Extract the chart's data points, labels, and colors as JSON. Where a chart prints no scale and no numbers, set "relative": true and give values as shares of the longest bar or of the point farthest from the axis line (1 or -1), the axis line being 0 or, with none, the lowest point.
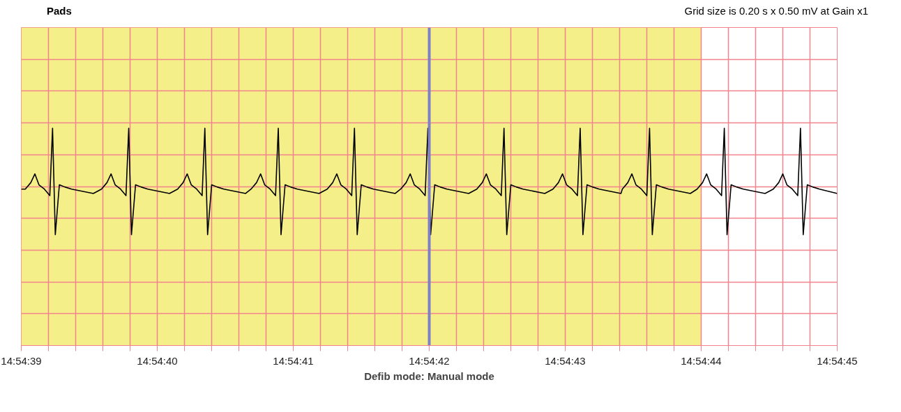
{
  "chart_data": {
    "type": "line",
    "title": "Pads",
    "subtitle": "Grid size is 0.20 s x 0.50 mV at Gain x1",
    "xlabel": "Defib mode: Manual mode",
    "relative": true,
    "grid": true,
    "xlim": [
      14.9108333,
      14.9125
    ],
    "xticks": [
      {
        "value": 14.9108333,
        "label": "14:54:39"
      },
      {
        "value": 14.9108889,
        "label": null
      },
      {
        "value": 14.9109444,
        "label": null
      },
      {
        "value": 14.911,
        "label": null
      },
      {
        "value": 14.9110556,
        "label": null
      },
      {
        "value": 14.9111111,
        "label": "14:54:40"
      },
      {
        "value": 14.9111667,
        "label": null
      },
      {
        "value": 14.9112222,
        "label": null
      },
      {
        "value": 14.9112778,
        "label": null
      },
      {
        "value": 14.9113333,
        "label": null
      },
      {
        "value": 14.9113889,
        "label": "14:54:41"
      },
      {
        "value": 14.9114444,
        "label": null
      },
      {
        "value": 14.9115,
        "label": null
      },
      {
        "value": 14.9115556,
        "label": null
      },
      {
        "value": 14.9116111,
        "label": null
      },
      {
        "value": 14.9116667,
        "label": "14:54:42"
      },
      {
        "value": 14.9117222,
        "label": null
      },
      {
        "value": 14.9117778,
        "label": null
      },
      {
        "value": 14.9118333,
        "label": null
      },
      {
        "value": 14.9118889,
        "label": null
      },
      {
        "value": 14.9119444,
        "label": "14:54:43"
      },
      {
        "value": 14.912,
        "label": null
      },
      {
        "value": 14.9120556,
        "label": null
      },
      {
        "value": 14.9121111,
        "label": null
      },
      {
        "value": 14.9121667,
        "label": null
      },
      {
        "value": 14.9122222,
        "label": "14:54:44"
      },
      {
        "value": 14.9122778,
        "label": null
      },
      {
        "value": 14.9123333,
        "label": null
      },
      {
        "value": 14.9123889,
        "label": null
      },
      {
        "value": 14.9124444,
        "label": null
      },
      {
        "value": 14.9125,
        "label": "14:54:45"
      }
    ],
    "bands": [
      {
        "axis": "x",
        "from": 14.9108333,
        "to": 14.9122222,
        "label": null,
        "color": "#f5ef8a"
      }
    ],
    "ref_lines": [
      {
        "axis": "x",
        "value": 14.9116667,
        "label": null,
        "color": "#7f7fc8"
      }
    ],
    "series": [
      {
        "color": "#000000",
        "x": [
          14.9108333,
          14.9108416,
          14.9108528,
          14.9108611,
          14.9108694,
          14.9108805,
          14.9108916,
          14.9108972,
          14.9109028,
          14.9109111,
          14.9109222,
          14.9109361,
          14.9109805,
          14.9109972,
          14.9110084,
          14.9110167,
          14.911025,
          14.9110361,
          14.9110472,
          14.9110528,
          14.9110584,
          14.9110667,
          14.9110778,
          14.9110917,
          14.9111361,
          14.9111527,
          14.9111639,
          14.9111722,
          14.9111805,
          14.9111916,
          14.9112027,
          14.9112083,
          14.9112139,
          14.9112222,
          14.9112333,
          14.9112472,
          14.9112916,
          14.9113027,
          14.9113139,
          14.9113222,
          14.9113305,
          14.9113416,
          14.9113527,
          14.9113583,
          14.9113639,
          14.9113722,
          14.9113833,
          14.9113972,
          14.9114416,
          14.9114583,
          14.9114695,
          14.9114778,
          14.9114861,
          14.9114972,
          14.9115083,
          14.9115139,
          14.9115195,
          14.9115278,
          14.9115389,
          14.9115528,
          14.9115972,
          14.9116083,
          14.9116195,
          14.9116278,
          14.9116361,
          14.9116472,
          14.9116583,
          14.9116639,
          14.9116695,
          14.9116778,
          14.9116889,
          14.9117028,
          14.9117472,
          14.9117638,
          14.911775,
          14.9117833,
          14.9117916,
          14.9118027,
          14.9118138,
          14.9118194,
          14.911825,
          14.9118333,
          14.9118444,
          14.9118583,
          14.9119027,
          14.9119194,
          14.9119306,
          14.9119389,
          14.9119472,
          14.9119583,
          14.9119694,
          14.911975,
          14.9119806,
          14.9119889,
          14.912,
          14.9120139,
          14.9120583,
          14.9120611,
          14.9120723,
          14.9120806,
          14.9120889,
          14.9121,
          14.9121111,
          14.9121167,
          14.9121223,
          14.9121306,
          14.9121417,
          14.9121556,
          14.9122,
          14.9122138,
          14.912225,
          14.9122333,
          14.9122416,
          14.9122527,
          14.9122638,
          14.9122694,
          14.912275,
          14.9122833,
          14.9122944,
          14.9123083,
          14.9123527,
          14.9123694,
          14.9123806,
          14.9123889,
          14.9123972,
          14.9124083,
          14.9124194,
          14.912425,
          14.9124306,
          14.9124389,
          14.91245,
          14.9124639,
          14.9125
        ],
        "values": [
          0.72,
          0.72,
          0.75,
          0.79,
          0.74,
          0.72,
          0.69,
          1,
          0.51,
          0.74,
          0.73,
          0.72,
          0.7,
          0.72,
          0.75,
          0.79,
          0.74,
          0.72,
          0.69,
          1,
          0.51,
          0.74,
          0.73,
          0.72,
          0.7,
          0.72,
          0.75,
          0.79,
          0.74,
          0.72,
          0.69,
          1,
          0.51,
          0.74,
          0.73,
          0.72,
          0.7,
          0.72,
          0.75,
          0.79,
          0.74,
          0.72,
          0.69,
          1,
          0.51,
          0.74,
          0.73,
          0.72,
          0.7,
          0.72,
          0.75,
          0.79,
          0.74,
          0.72,
          0.69,
          1,
          0.51,
          0.74,
          0.73,
          0.72,
          0.7,
          0.72,
          0.75,
          0.79,
          0.74,
          0.72,
          0.69,
          1,
          0.51,
          0.74,
          0.73,
          0.72,
          0.7,
          0.72,
          0.75,
          0.79,
          0.74,
          0.72,
          0.69,
          1,
          0.51,
          0.74,
          0.73,
          0.72,
          0.7,
          0.72,
          0.75,
          0.79,
          0.74,
          0.72,
          0.69,
          1,
          0.51,
          0.74,
          0.73,
          0.72,
          0.7,
          0.72,
          0.75,
          0.79,
          0.74,
          0.72,
          0.69,
          1,
          0.51,
          0.74,
          0.73,
          0.72,
          0.7,
          0.72,
          0.75,
          0.79,
          0.74,
          0.72,
          0.69,
          1,
          0.51,
          0.74,
          0.73,
          0.72,
          0.7,
          0.72,
          0.75,
          0.79,
          0.74,
          0.72,
          0.69,
          1,
          0.51,
          0.74,
          0.73,
          0.72,
          0.7
        ]
      }
    ]
  }
}
